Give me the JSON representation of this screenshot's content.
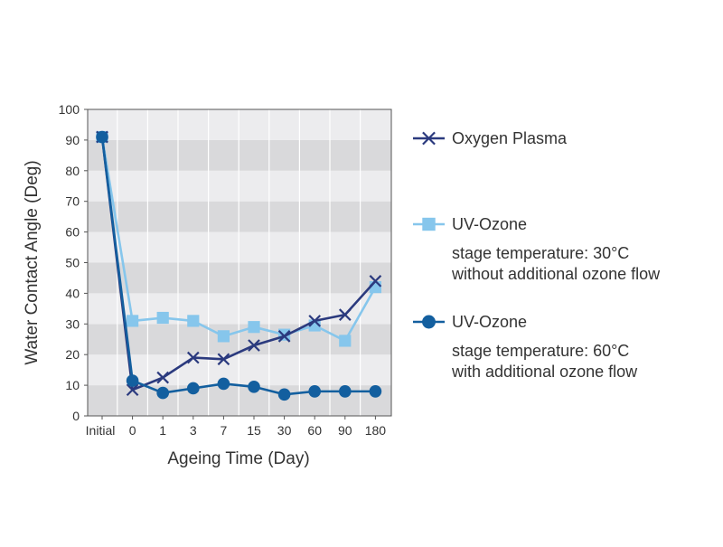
{
  "chart_data": {
    "type": "line",
    "title": "",
    "xlabel": "Ageing Time (Day)",
    "ylabel": "Water Contact Angle (Deg)",
    "categories": [
      "Initial",
      "0",
      "1",
      "3",
      "7",
      "15",
      "30",
      "60",
      "90",
      "180"
    ],
    "ylim": [
      0,
      100
    ],
    "yticks": [
      0,
      10,
      20,
      30,
      40,
      50,
      60,
      70,
      80,
      90,
      100
    ],
    "grid": "horizontal alternating bands",
    "background_bands": [
      "#d9d9db",
      "#ececee"
    ],
    "legend_position": "right",
    "series": [
      {
        "name": "Oxygen Plasma",
        "marker": "x",
        "color": "#2b3a7e",
        "notes": [],
        "values": [
          91,
          8.5,
          12.5,
          19,
          18.5,
          23,
          26,
          31,
          33,
          44
        ]
      },
      {
        "name": "UV-Ozone",
        "marker": "square",
        "color": "#86c6ec",
        "notes": [
          "stage temperature: 30°C",
          "without additional ozone flow"
        ],
        "values": [
          91,
          31,
          32,
          31,
          26,
          29,
          26.5,
          29.5,
          24.5,
          42
        ]
      },
      {
        "name": "UV-Ozone",
        "marker": "circle",
        "color": "#135f9f",
        "notes": [
          "stage temperature: 60°C",
          "with additional ozone flow"
        ],
        "values": [
          91,
          11.5,
          7.5,
          9,
          10.5,
          9.5,
          7,
          8,
          8,
          8
        ]
      }
    ]
  }
}
